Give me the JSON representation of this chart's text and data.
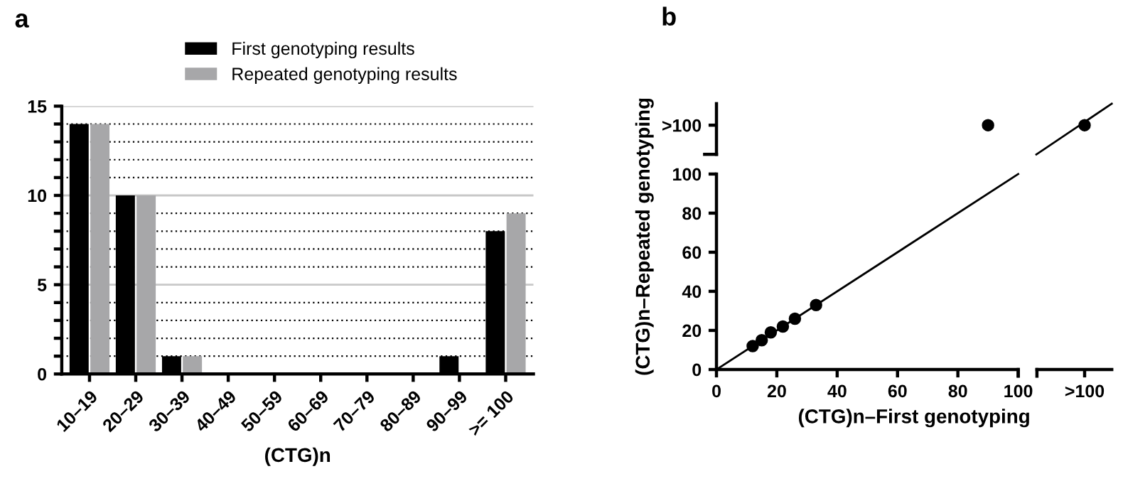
{
  "chart_data": [
    {
      "type": "bar",
      "title": "a",
      "xlabel": "(CTG)n",
      "categories": [
        "10–19",
        "20–29",
        "30–39",
        "40–49",
        "50–59",
        "60–69",
        "70–79",
        "80–89",
        "90–99",
        ">= 100"
      ],
      "series": [
        {
          "name": "First genotyping results",
          "color": "#000000",
          "values": [
            14,
            10,
            1,
            0,
            0,
            0,
            0,
            0,
            1,
            8
          ]
        },
        {
          "name": "Repeated genotyping results",
          "color": "#a7a7a9",
          "values": [
            14,
            10,
            1,
            0,
            0,
            0,
            0,
            0,
            0,
            9
          ]
        }
      ],
      "ylim": [
        0,
        15
      ],
      "yticks": [
        0,
        {
          "value": 1,
          "label": null
        },
        {
          "value": 2,
          "label": null
        },
        {
          "value": 3,
          "label": null
        },
        {
          "value": 4,
          "label": null
        },
        5,
        {
          "value": 6,
          "label": null
        },
        {
          "value": 7,
          "label": null
        },
        {
          "value": 8,
          "label": null
        },
        {
          "value": 9,
          "label": null
        },
        10,
        {
          "value": 11,
          "label": null
        },
        {
          "value": 12,
          "label": null
        },
        {
          "value": 13,
          "label": null
        },
        {
          "value": 14,
          "label": null
        },
        15
      ],
      "grid": "y",
      "legend": "top"
    },
    {
      "type": "scatter",
      "title": "b",
      "xlabel": "(CTG)n–First genotyping",
      "ylabel": "(CTG)n–Repeated genotyping",
      "x": [
        12,
        15,
        18,
        22,
        26,
        33,
        90,
        122
      ],
      "series": [
        {
          "color": "#000000",
          "values": [
            12,
            15,
            19,
            22,
            26,
            33,
            125,
            125
          ],
          "marker": "circle"
        },
        {
          "type": "line",
          "color": "#000000",
          "x": [
            0,
            100,
            103,
            106,
            131
          ],
          "values": [
            0,
            100,
            null,
            110,
            136
          ],
          "marker": "none"
        }
      ],
      "xlim": [
        0,
        131
      ],
      "ylim": [
        0,
        136
      ],
      "xticks": [
        0,
        20,
        40,
        60,
        80,
        100,
        {
          "value": 122,
          "label": ">100"
        }
      ],
      "yticks": [
        0,
        20,
        40,
        60,
        80,
        100,
        {
          "value": 125,
          "label": ">100"
        }
      ],
      "grid": false,
      "legend": false
    }
  ]
}
